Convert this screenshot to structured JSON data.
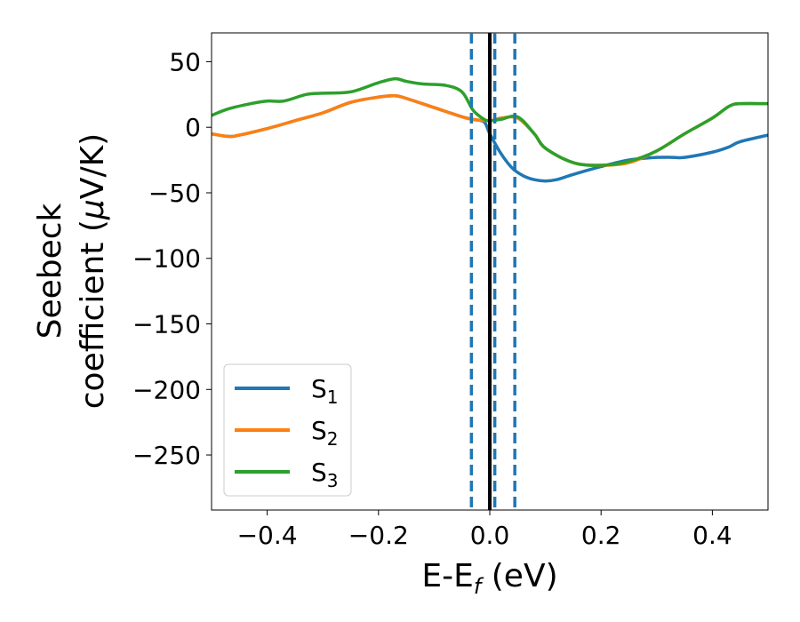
{
  "chart_data": {
    "type": "line",
    "xlabel": {
      "main": "E-E",
      "sub": "f",
      "tail": " (eV)"
    },
    "ylabel": {
      "line1": "Seebeck",
      "line2_pre": "coefficient  (",
      "line2_mu": "μ",
      "line2_post": "V/K)"
    },
    "xlim": [
      -0.5,
      0.5
    ],
    "ylim": [
      -292,
      72
    ],
    "xticks": [
      -0.4,
      -0.2,
      0.0,
      0.2,
      0.4
    ],
    "xtick_labels": [
      "−0.4",
      "−0.2",
      "0.0",
      "0.2",
      "0.4"
    ],
    "yticks": [
      50,
      0,
      -50,
      -100,
      -150,
      -200,
      -250
    ],
    "ytick_labels": [
      "50",
      "0",
      "−50",
      "−100",
      "−150",
      "−200",
      "−250"
    ],
    "grid": false,
    "legend_position": "lower-left",
    "vlines": [
      {
        "x": -0.033,
        "style": "dashed",
        "color": "#1f77b4"
      },
      {
        "x": 0.009,
        "style": "dashed",
        "color": "#1f77b4"
      },
      {
        "x": 0.045,
        "style": "dashed",
        "color": "#1f77b4"
      },
      {
        "x": 0.0,
        "style": "solid",
        "color": "#000000"
      }
    ],
    "series": [
      {
        "name": {
          "base": "S",
          "sub": "1"
        },
        "color": "#1f77b4",
        "x": [
          -0.5,
          -0.47,
          -0.45,
          -0.4,
          -0.35,
          -0.3,
          -0.25,
          -0.2,
          -0.17,
          -0.15,
          -0.1,
          -0.05,
          -0.03,
          -0.01,
          0.0,
          0.02,
          0.04,
          0.06,
          0.08,
          0.1,
          0.12,
          0.15,
          0.2,
          0.25,
          0.3,
          0.33,
          0.35,
          0.4,
          0.43,
          0.45,
          0.5
        ],
        "y": [
          -5,
          -7,
          -6,
          -1,
          5,
          11,
          19,
          23,
          24,
          22,
          15,
          8,
          6,
          4,
          -5,
          -20,
          -31,
          -37,
          -40,
          -41,
          -40,
          -36,
          -30,
          -25,
          -23,
          -23,
          -23,
          -19,
          -15,
          -11,
          -6
        ]
      },
      {
        "name": {
          "base": "S",
          "sub": "2"
        },
        "color": "#ff7f0e",
        "x": [
          -0.5,
          -0.47,
          -0.45,
          -0.4,
          -0.35,
          -0.3,
          -0.25,
          -0.2,
          -0.17,
          -0.15,
          -0.1,
          -0.05,
          -0.03,
          0.0,
          0.02,
          0.05,
          0.08,
          0.1,
          0.15,
          0.2,
          0.25,
          0.3,
          0.35,
          0.4,
          0.43,
          0.45,
          0.5
        ],
        "y": [
          -5,
          -7,
          -6,
          -1,
          5,
          11,
          19,
          23,
          24,
          22,
          15,
          8,
          6,
          5,
          7,
          7,
          -5,
          -16,
          -27,
          -29,
          -27,
          -18,
          -5,
          7,
          16,
          18,
          18
        ]
      },
      {
        "name": {
          "base": "S",
          "sub": "3"
        },
        "color": "#2ca02c",
        "x": [
          -0.5,
          -0.47,
          -0.43,
          -0.4,
          -0.37,
          -0.33,
          -0.3,
          -0.25,
          -0.2,
          -0.17,
          -0.15,
          -0.12,
          -0.08,
          -0.05,
          -0.03,
          -0.01,
          0.0,
          0.02,
          0.05,
          0.08,
          0.1,
          0.15,
          0.2,
          0.25,
          0.3,
          0.35,
          0.4,
          0.43,
          0.45,
          0.5
        ],
        "y": [
          9,
          14,
          18,
          20,
          20,
          25,
          26,
          27,
          34,
          37,
          35,
          33,
          32,
          27,
          13,
          6,
          5,
          6,
          8,
          -5,
          -16,
          -27,
          -29,
          -26,
          -18,
          -5,
          7,
          16,
          18,
          18
        ]
      }
    ]
  }
}
